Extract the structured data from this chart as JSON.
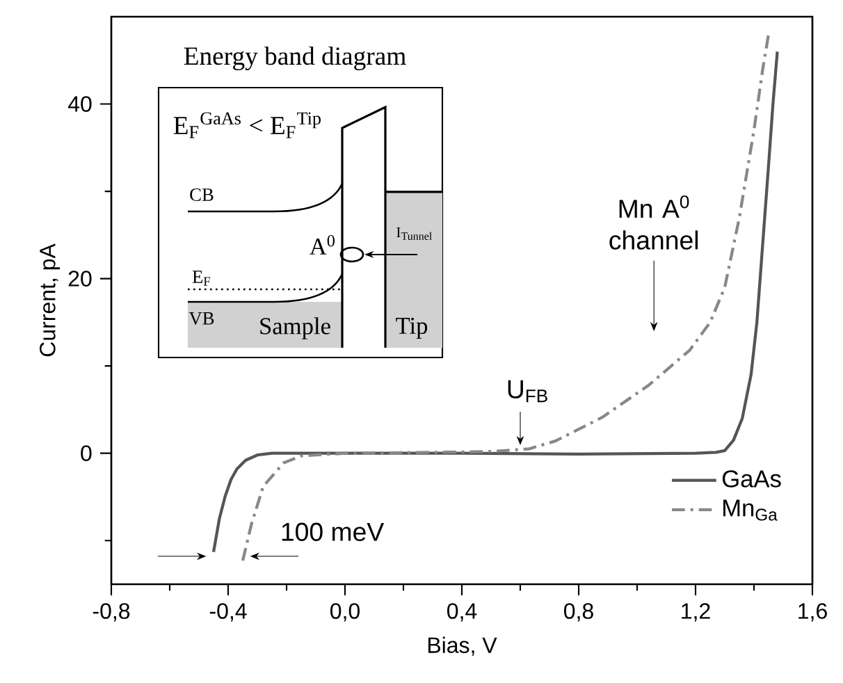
{
  "chart_data": {
    "type": "line",
    "xlabel": "Bias, V",
    "ylabel": "Current, pA",
    "xlim": [
      -0.8,
      1.6
    ],
    "ylim": [
      -15,
      50
    ],
    "xticks": [
      {
        "value": -0.8,
        "label": "-0,8"
      },
      {
        "value": -0.6,
        "label": null
      },
      {
        "value": -0.4,
        "label": "-0,4"
      },
      {
        "value": -0.2,
        "label": null
      },
      {
        "value": 0.0,
        "label": "0,0"
      },
      {
        "value": 0.2,
        "label": null
      },
      {
        "value": 0.4,
        "label": "0,4"
      },
      {
        "value": 0.6,
        "label": null
      },
      {
        "value": 0.8,
        "label": "0,8"
      },
      {
        "value": 1.0,
        "label": null
      },
      {
        "value": 1.2,
        "label": "1,2"
      },
      {
        "value": 1.4,
        "label": null
      },
      {
        "value": 1.6,
        "label": "1,6"
      }
    ],
    "yticks": [
      {
        "value": -10,
        "label": null
      },
      0,
      {
        "value": 10,
        "label": null
      },
      20,
      {
        "value": 30,
        "label": null
      },
      40
    ],
    "grid": false,
    "legend": "bottom right",
    "marker": "none",
    "series": [
      {
        "name": "GaAs",
        "color": "#555555",
        "line_style": "solid",
        "x": [
          -0.45,
          -0.43,
          -0.41,
          -0.39,
          -0.37,
          -0.34,
          -0.3,
          -0.25,
          0.0,
          0.4,
          0.8,
          1.2,
          1.27,
          1.3,
          1.33,
          1.36,
          1.39,
          1.41,
          1.43,
          1.45,
          1.465,
          1.48
        ],
        "values": [
          -11.3,
          -7.5,
          -4.9,
          -3,
          -1.8,
          -0.8,
          -0.2,
          0,
          0,
          0,
          -0.1,
          0,
          0.1,
          0.3,
          1.5,
          4,
          9,
          15,
          24,
          33,
          40,
          46
        ]
      },
      {
        "name": "Mn$_{Ga}$",
        "color": "#888888",
        "line_style": "dashdot",
        "x": [
          -0.35,
          -0.32,
          -0.28,
          -0.21,
          -0.15,
          0.0,
          0.3,
          0.5,
          0.63,
          0.72,
          0.88,
          1.04,
          1.18,
          1.25,
          1.3,
          1.35,
          1.4,
          1.43,
          1.45
        ],
        "values": [
          -12.3,
          -8.1,
          -3.8,
          -1.1,
          -0.3,
          0,
          0.1,
          0.2,
          0.5,
          1.4,
          4.1,
          7.8,
          11.8,
          15,
          19,
          27,
          37,
          44,
          48
        ]
      }
    ],
    "annotations": [
      "100 meV",
      {
        "text": "U$_{FB}$",
        "x": 0.6,
        "y": 0.5
      },
      "Mn A$^{0}$ channel",
      "Energy band diagram",
      "E$_{F}$$^{GaAs}$ < E$_{F}$$^{Tip}$",
      "CB",
      "E$_{F}$",
      "VB",
      "Sample",
      "Tip",
      "A$^{0}$",
      "I$_{Tunnel}$"
    ]
  }
}
